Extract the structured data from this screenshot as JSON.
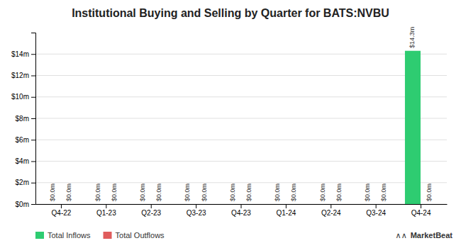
{
  "chart_data": {
    "type": "bar",
    "title": "Institutional Buying and Selling by Quarter for BATS:NVBU",
    "categories": [
      "Q4-22",
      "Q1-23",
      "Q2-23",
      "Q3-23",
      "Q4-23",
      "Q1-24",
      "Q2-24",
      "Q3-24",
      "Q4-24"
    ],
    "series": [
      {
        "name": "Total Inflows",
        "color": "#2ecc71",
        "values": [
          0,
          0,
          0,
          0,
          0,
          0,
          0,
          0,
          14.3
        ],
        "value_labels": [
          "$0.0m",
          "$0.0m",
          "$0.0m",
          "$0.0m",
          "$0.0m",
          "$0.0m",
          "$0.0m",
          "$0.0m",
          "$14.3m"
        ]
      },
      {
        "name": "Total Outflows",
        "color": "#e05c5c",
        "values": [
          0,
          0,
          0,
          0,
          0,
          0,
          0,
          0,
          0
        ],
        "value_labels": [
          "$0.0m",
          "$0.0m",
          "$0.0m",
          "$0.0m",
          "$0.0m",
          "$0.0m",
          "$0.0m",
          "$0.0m",
          "$0.0m"
        ]
      }
    ],
    "ylim": [
      0,
      16.0
    ],
    "yticks": [
      {
        "value": 0,
        "label": "$0m"
      },
      {
        "value": 2,
        "label": "$2m"
      },
      {
        "value": 4,
        "label": "$4m"
      },
      {
        "value": 6,
        "label": "$6m"
      },
      {
        "value": 8,
        "label": "$8m"
      },
      {
        "value": 10,
        "label": "$10m"
      },
      {
        "value": 12,
        "label": "$12m"
      },
      {
        "value": 14,
        "label": "$14m"
      }
    ],
    "grid": true,
    "legend": "lower left",
    "data_labels": true,
    "annotations": [
      "∧∧",
      "MarketBeat"
    ]
  }
}
